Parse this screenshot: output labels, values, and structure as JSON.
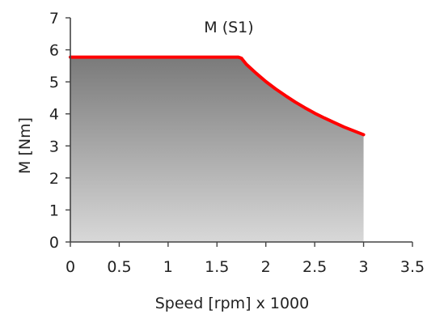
{
  "chart_data": {
    "type": "area",
    "title": "M (S1)",
    "xlabel": "Speed [rpm] x 1000",
    "ylabel": "M [Nm]",
    "xlim": [
      0,
      3.5
    ],
    "ylim": [
      0,
      7
    ],
    "xticks": [
      "0",
      "0.5",
      "1",
      "1.5",
      "2",
      "2.5",
      "3",
      "3.5"
    ],
    "yticks": [
      "0",
      "1",
      "2",
      "3",
      "4",
      "5",
      "6",
      "7"
    ],
    "grid": false,
    "series": [
      {
        "x": [
          0,
          0.25,
          0.5,
          0.75,
          1.0,
          1.25,
          1.5,
          1.72,
          1.75,
          1.8,
          1.9,
          2.0,
          2.1,
          2.2,
          2.3,
          2.4,
          2.5,
          2.6,
          2.7,
          2.8,
          2.9,
          3.0
        ],
        "y": [
          5.77,
          5.77,
          5.77,
          5.77,
          5.77,
          5.77,
          5.77,
          5.77,
          5.74,
          5.55,
          5.27,
          5.01,
          4.78,
          4.57,
          4.37,
          4.19,
          4.02,
          3.87,
          3.73,
          3.59,
          3.47,
          3.35
        ]
      }
    ],
    "colors": {
      "line": "#ff0000",
      "fill_top": "#7a7a7a",
      "fill_bottom": "#d8d8d8"
    }
  }
}
